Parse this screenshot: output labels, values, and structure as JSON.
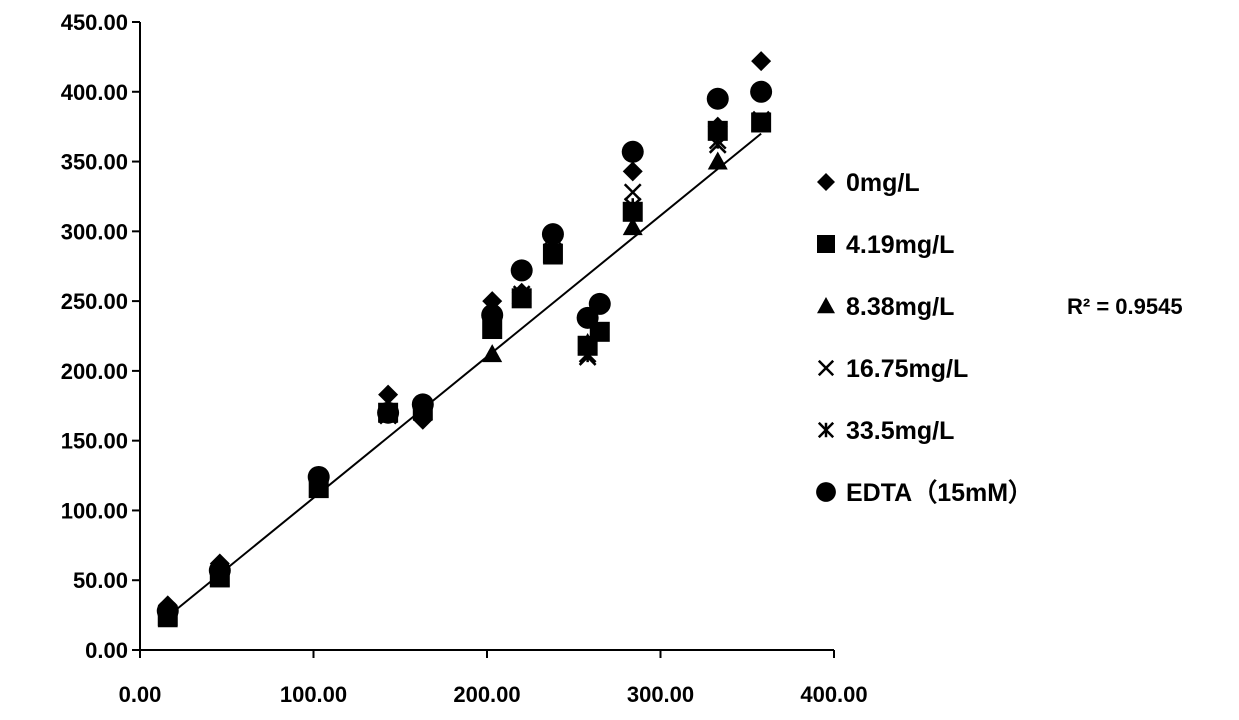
{
  "chart_data": {
    "type": "scatter",
    "title": "",
    "xlabel": "",
    "ylabel": "",
    "xlim": [
      0,
      400
    ],
    "ylim": [
      0,
      450
    ],
    "x_ticks": [
      0,
      100,
      200,
      300,
      400
    ],
    "y_ticks": [
      0,
      50,
      100,
      150,
      200,
      250,
      300,
      350,
      400,
      450
    ],
    "x_tick_labels": [
      "0.00",
      "100.00",
      "200.00",
      "300.00",
      "400.00"
    ],
    "y_tick_labels": [
      "0.00",
      "50.00",
      "100.00",
      "150.00",
      "200.00",
      "250.00",
      "300.00",
      "350.00",
      "400.00",
      "450.00"
    ],
    "grid": false,
    "legend_position": "right",
    "series": [
      {
        "name": "0mg/L",
        "marker": "diamond",
        "x": [
          16,
          46,
          103,
          143,
          163,
          203,
          220,
          238,
          258,
          284,
          333,
          358
        ],
        "y": [
          32,
          62,
          122,
          183,
          165,
          250,
          256,
          295,
          238,
          343,
          375,
          422
        ]
      },
      {
        "name": "4.19mg/L",
        "marker": "square",
        "x": [
          16,
          46,
          103,
          143,
          163,
          203,
          220,
          238,
          258,
          265,
          284,
          333,
          358
        ],
        "y": [
          24,
          52,
          116,
          170,
          172,
          230,
          252,
          284,
          218,
          228,
          314,
          372,
          378
        ]
      },
      {
        "name": "8.38mg/L",
        "marker": "triangle",
        "x": [
          16,
          46,
          103,
          143,
          163,
          203,
          220,
          238,
          258,
          284,
          333,
          358
        ],
        "y": [
          22,
          52,
          116,
          170,
          170,
          212,
          254,
          282,
          220,
          303,
          350,
          378
        ]
      },
      {
        "name": "16.75mg/L",
        "marker": "x",
        "x": [
          16,
          46,
          103,
          143,
          163,
          203,
          220,
          238,
          258,
          284,
          333,
          358
        ],
        "y": [
          24,
          55,
          118,
          168,
          175,
          236,
          255,
          285,
          210,
          328,
          362,
          380
        ]
      },
      {
        "name": "33.5mg/L",
        "marker": "asterisk",
        "x": [
          16,
          46,
          103,
          143,
          163,
          203,
          220,
          238,
          258,
          284,
          333,
          358
        ],
        "y": [
          24,
          53,
          116,
          168,
          173,
          232,
          252,
          286,
          212,
          318,
          365,
          378
        ]
      },
      {
        "name": "EDTA（15mM）",
        "marker": "circle",
        "x": [
          16,
          46,
          103,
          143,
          163,
          203,
          220,
          238,
          258,
          265,
          284,
          333,
          358
        ],
        "y": [
          28,
          57,
          124,
          170,
          176,
          240,
          272,
          298,
          238,
          248,
          357,
          395,
          400
        ]
      }
    ],
    "trendline": {
      "x": [
        16,
        358
      ],
      "y": [
        24,
        370
      ]
    },
    "annotation": "R² = 0.9545"
  }
}
